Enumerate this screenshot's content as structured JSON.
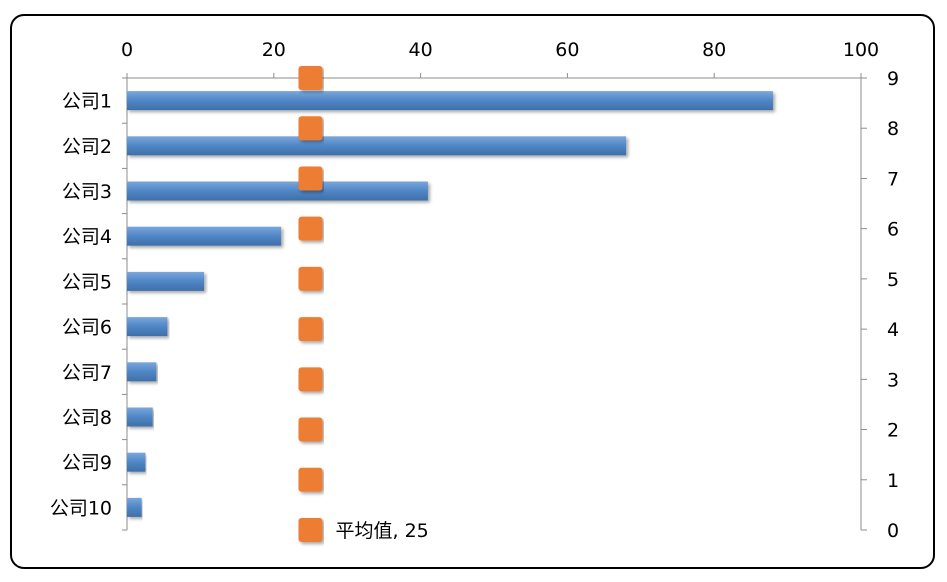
{
  "chart_data": {
    "type": "bar",
    "orientation": "horizontal",
    "title": "",
    "categories": [
      "公司1",
      "公司2",
      "公司3",
      "公司4",
      "公司5",
      "公司6",
      "公司7",
      "公司8",
      "公司9",
      "公司10"
    ],
    "series": [
      {
        "color": "#4f86c6",
        "values": [
          88,
          68,
          41,
          21,
          10.5,
          5.5,
          4,
          3.5,
          2.5,
          2
        ]
      },
      {
        "type": "line",
        "color": "#ed7d31",
        "x_value": 25,
        "y_values": [
          0,
          1,
          2,
          3,
          4,
          5,
          6,
          7,
          8,
          9
        ]
      }
    ],
    "x_axis": {
      "position": "top",
      "range": [
        0,
        100
      ],
      "ticks": [
        "0",
        "20",
        "40",
        "60",
        "80",
        "100"
      ]
    },
    "y2_axis": {
      "position": "right",
      "range": [
        0,
        9
      ],
      "ticks": [
        "0",
        "1",
        "2",
        "3",
        "4",
        "5",
        "6",
        "7",
        "8",
        "9"
      ]
    },
    "annotation": "平均值, 25",
    "grid": false,
    "legend": "none"
  }
}
